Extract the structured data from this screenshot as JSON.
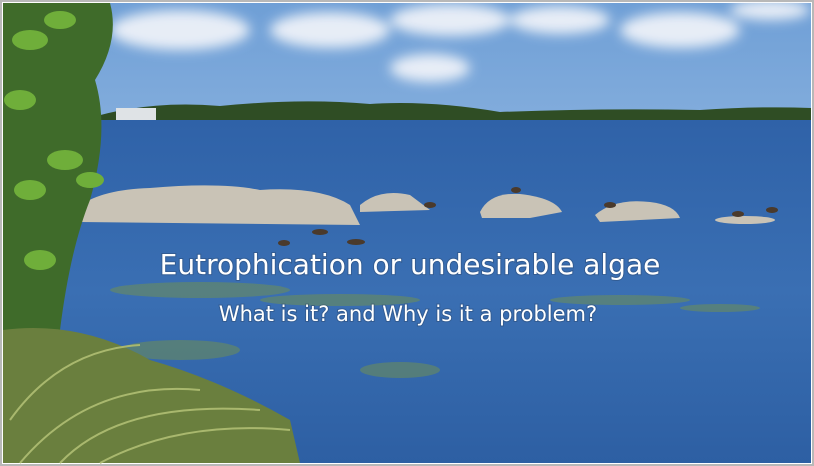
{
  "title": "Eutrophication or undesirable algae",
  "subtitle": "What is it? and Why is it a problem?"
}
